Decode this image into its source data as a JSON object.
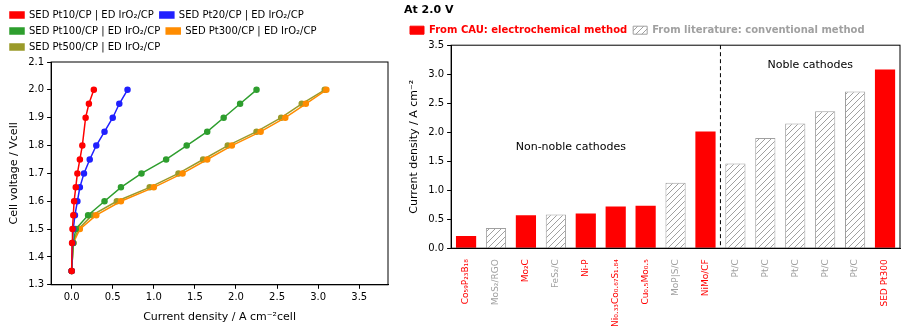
{
  "chart_data": [
    {
      "type": "line",
      "xlabel": "Current density / A cm⁻²cell",
      "ylabel": "Cell voltage / Vcell",
      "xlim": [
        -0.25,
        3.85
      ],
      "ylim": [
        1.3,
        2.1
      ],
      "xticks": [
        {
          "value": 0,
          "label": "0.0"
        },
        0.5,
        {
          "value": 1,
          "label": "1.0"
        },
        1.5,
        {
          "value": 2,
          "label": "2.0"
        },
        2.5,
        {
          "value": 3,
          "label": "3.0"
        },
        3.5
      ],
      "yticks": [
        1.3,
        1.4,
        1.5,
        1.6,
        1.7,
        1.8,
        1.9,
        {
          "value": 2,
          "label": "2.0"
        },
        2.1
      ],
      "grid": false,
      "legend": "top",
      "marker": "circle",
      "series": [
        {
          "name": "SED Pt10/CP | ED IrO₂/CP",
          "color": "#ff0000",
          "x": [
            0,
            0.005,
            0.01,
            0.02,
            0.03,
            0.05,
            0.07,
            0.1,
            0.13,
            0.17,
            0.21,
            0.27
          ],
          "values": [
            1.35,
            1.45,
            1.5,
            1.55,
            1.6,
            1.65,
            1.7,
            1.75,
            1.8,
            1.9,
            1.95,
            2.0
          ]
        },
        {
          "name": "SED Pt20/CP | ED IrO₂/CP",
          "color": "#2020ff",
          "x": [
            0,
            0.01,
            0.02,
            0.04,
            0.07,
            0.1,
            0.15,
            0.22,
            0.3,
            0.4,
            0.5,
            0.58,
            0.68
          ],
          "values": [
            1.35,
            1.45,
            1.5,
            1.55,
            1.6,
            1.65,
            1.7,
            1.75,
            1.8,
            1.85,
            1.9,
            1.95,
            2.0
          ]
        },
        {
          "name": "SED Pt100/CP | ED IrO₂/CP",
          "color": "#2e9e2e",
          "x": [
            0,
            0.02,
            0.05,
            0.2,
            0.4,
            0.6,
            0.85,
            1.15,
            1.4,
            1.65,
            1.85,
            2.05,
            2.25
          ],
          "values": [
            1.35,
            1.45,
            1.5,
            1.55,
            1.6,
            1.65,
            1.7,
            1.75,
            1.8,
            1.85,
            1.9,
            1.95,
            2.0
          ]
        },
        {
          "name": "SED Pt300/CP | ED IrO₂/CP",
          "color": "#ff8c00",
          "x": [
            0,
            0.02,
            0.1,
            0.3,
            0.6,
            1.0,
            1.35,
            1.65,
            1.95,
            2.3,
            2.6,
            2.85,
            3.1
          ],
          "values": [
            1.35,
            1.45,
            1.5,
            1.55,
            1.6,
            1.65,
            1.7,
            1.75,
            1.8,
            1.85,
            1.9,
            1.95,
            2.0
          ]
        },
        {
          "name": "SED Pt500/CP | ED IrO₂/CP",
          "color": "#9a9a2a",
          "x": [
            0,
            0.02,
            0.08,
            0.25,
            0.55,
            0.95,
            1.3,
            1.6,
            1.9,
            2.25,
            2.55,
            2.8,
            3.08
          ],
          "values": [
            1.35,
            1.45,
            1.5,
            1.55,
            1.6,
            1.65,
            1.7,
            1.75,
            1.8,
            1.85,
            1.9,
            1.95,
            2.0
          ]
        }
      ]
    },
    {
      "type": "bar",
      "title": "At 2.0 V",
      "ylabel": "Current density / A cm⁻²",
      "categories": [
        "Co₅₉P₂₃B₁₈",
        "MoS₂/RGO",
        "Mo₂C",
        "FeS₂/C",
        "Ni-P",
        "Ni₀.₃₃Co₀.₆₇S₁.₈₄",
        "Cu₀.₅Mo₀.₅",
        "MoP|S/C",
        "NiMo/CF",
        "Pt/C",
        "Pt/C",
        "Pt/C",
        "Pt/C",
        "Pt/C",
        "SED Pt300"
      ],
      "ylim": [
        0,
        3.5
      ],
      "yticks": [
        {
          "value": 0,
          "label": "0.0"
        },
        0.5,
        {
          "value": 1,
          "label": "1.0"
        },
        1.5,
        {
          "value": 2,
          "label": "2.0"
        },
        2.5,
        {
          "value": 3,
          "label": "3.0"
        },
        3.5
      ],
      "grid": false,
      "legend": "top",
      "annotations": [
        "Non-noble cathodes",
        "Noble cathodes"
      ],
      "series": [
        {
          "name": "From CAU: electrochemical method",
          "color": "#ff0000",
          "values": [
            0.21,
            null,
            0.57,
            null,
            0.6,
            0.72,
            0.73,
            null,
            2.01,
            null,
            null,
            null,
            null,
            null,
            3.08
          ]
        },
        {
          "name": "From literature: conventional method",
          "color": "#a0a0a0",
          "values": [
            null,
            0.35,
            null,
            0.58,
            null,
            null,
            null,
            1.13,
            null,
            1.46,
            1.9,
            2.15,
            2.36,
            2.7,
            null
          ]
        }
      ]
    }
  ]
}
